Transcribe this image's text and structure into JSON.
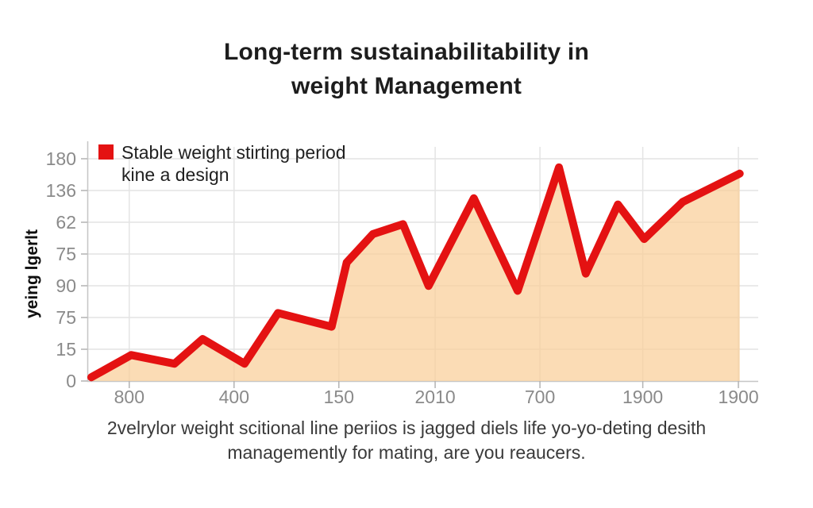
{
  "header": {
    "title_line1": "Long-term sustainabilitability in",
    "title_line2": "weight Management"
  },
  "legend": {
    "line1": "Stable weight stirting period",
    "line2": "kine a design"
  },
  "y_axis": {
    "title": "yeing lgerlt"
  },
  "caption": {
    "line1": "2velrylor weight scitional line periios is jagged diels life yo-yo-deting desith",
    "line2": "managemently for mating, are you reaucers."
  },
  "chart_data": {
    "type": "area",
    "title": "Long-term sustainabilitability in weight Management",
    "ylabel": "yeing lgerlt",
    "xlabel": "",
    "grid": true,
    "legend_position": "top-left",
    "legend_entries": [
      "Stable weight stirting period kine a design"
    ],
    "y_tick_labels_top_to_bottom": [
      "180",
      "136",
      "62",
      "75",
      "90",
      "75",
      "15",
      "0"
    ],
    "x_tick_labels": [
      "800",
      "400",
      "150",
      "2010",
      "700",
      "1900",
      "1900"
    ],
    "x_tick_pos": [
      0.064,
      0.224,
      0.384,
      0.531,
      0.691,
      0.848,
      0.994
    ],
    "y_value_scale": [
      0,
      180
    ],
    "note": "axis tick labels are non-monotonic garbled text; series values estimated on a linear 0-180 scale between bottom and top ticks",
    "series": [
      {
        "name": "Stable weight stirting period kine a design",
        "points": [
          [
            0.006,
            3
          ],
          [
            0.067,
            21
          ],
          [
            0.133,
            14
          ],
          [
            0.176,
            34
          ],
          [
            0.24,
            14
          ],
          [
            0.291,
            55
          ],
          [
            0.373,
            44
          ],
          [
            0.396,
            96
          ],
          [
            0.436,
            119
          ],
          [
            0.482,
            127
          ],
          [
            0.521,
            77
          ],
          [
            0.59,
            148
          ],
          [
            0.657,
            73
          ],
          [
            0.72,
            173
          ],
          [
            0.761,
            87
          ],
          [
            0.81,
            143
          ],
          [
            0.85,
            115
          ],
          [
            0.909,
            145
          ],
          [
            0.996,
            168
          ]
        ]
      }
    ],
    "colors": {
      "line": "#e41212",
      "fill": "rgba(250,205,150,0.7)",
      "grid": "#e4e4e4",
      "axis": "#c6c6c6",
      "tick_mark": "#b3b3b3",
      "tick_text": "#8a8a8a"
    }
  }
}
